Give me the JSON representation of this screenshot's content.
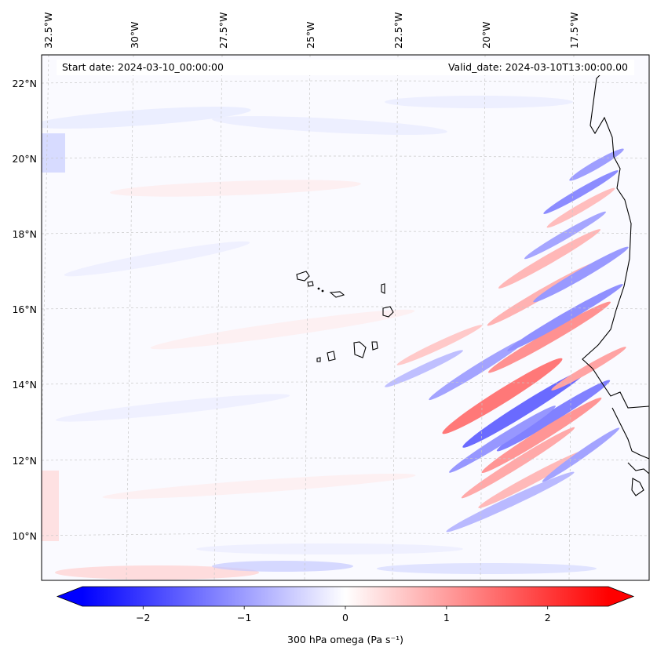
{
  "map": {
    "start_date_label": "Start date: 2024-03-10_00:00:00",
    "valid_date_label": "Valid_date: 2024-03-10T13:00:00.00",
    "lon_labels": [
      "32.5°W",
      "30°W",
      "27.5°W",
      "25°W",
      "22.5°W",
      "20°W",
      "17.5°W"
    ],
    "lat_labels": [
      "22°N",
      "20°N",
      "18°N",
      "16°N",
      "14°N",
      "12°N",
      "10°N"
    ],
    "field": "300 hPa omega",
    "colormap": "bwr"
  },
  "colorbar": {
    "label": "300 hPa omega (Pa s⁻¹)",
    "ticks": [
      -2,
      -1,
      0,
      1,
      2
    ],
    "tick_labels": [
      "−2",
      "−1",
      "0",
      "1",
      "2"
    ],
    "range": [
      -2.6,
      2.6
    ],
    "extend": "both",
    "color_min": "#0000ff",
    "color_mid": "#ffffff",
    "color_max": "#ff0000"
  }
}
